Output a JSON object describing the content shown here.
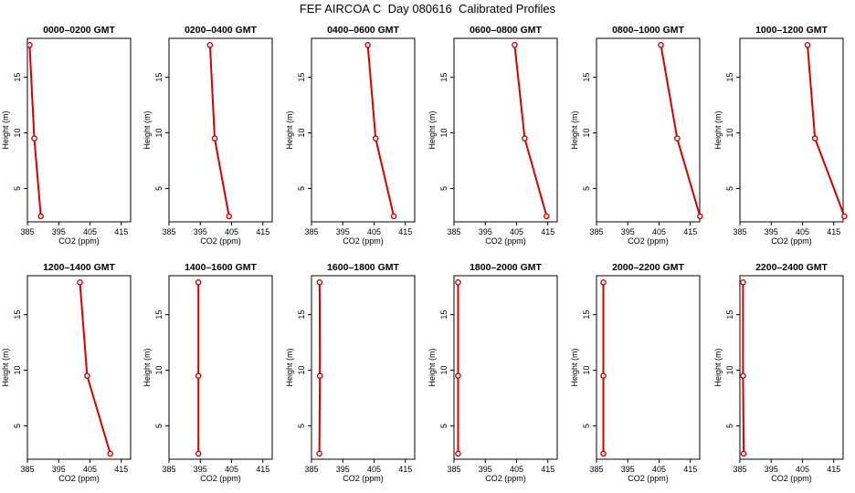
{
  "page": {
    "title": "FEF AIRCOA C  Day 080616  Calibrated Profiles"
  },
  "colors": {
    "profile": "#d40000",
    "axis": "#000000"
  },
  "chart_data": [
    {
      "type": "line",
      "title": "0000–0200 GMT",
      "xlabel": "CO2 (ppm)",
      "ylabel": "Height (m)",
      "xlim": [
        385,
        418
      ],
      "ylim": [
        2,
        18.5
      ],
      "x_ticks": [
        "385",
        "395",
        "405",
        "415"
      ],
      "y_ticks": [
        "5",
        "10",
        "15"
      ],
      "series": [
        {
          "x": [
            385.7,
            387.2,
            389.3
          ],
          "y": [
            17.9,
            9.5,
            2.5
          ]
        }
      ]
    },
    {
      "type": "line",
      "title": "0200–0400 GMT",
      "xlabel": "CO2 (ppm)",
      "ylabel": "Height (m)",
      "xlim": [
        385,
        418
      ],
      "ylim": [
        2,
        18.5
      ],
      "x_ticks": [
        "385",
        "395",
        "405",
        "415"
      ],
      "y_ticks": [
        "5",
        "10",
        "15"
      ],
      "series": [
        {
          "x": [
            398.1,
            399.6,
            404.2
          ],
          "y": [
            17.9,
            9.5,
            2.5
          ]
        }
      ]
    },
    {
      "type": "line",
      "title": "0400–0600 GMT",
      "xlabel": "CO2 (ppm)",
      "ylabel": "Height (m)",
      "xlim": [
        385,
        418
      ],
      "ylim": [
        2,
        18.5
      ],
      "x_ticks": [
        "385",
        "395",
        "405",
        "415"
      ],
      "y_ticks": [
        "5",
        "10",
        "15"
      ],
      "series": [
        {
          "x": [
            403.0,
            405.5,
            411.3
          ],
          "y": [
            17.9,
            9.5,
            2.5
          ]
        }
      ]
    },
    {
      "type": "line",
      "title": "0600–0800 GMT",
      "xlabel": "CO2 (ppm)",
      "ylabel": "Height (m)",
      "xlim": [
        385,
        418
      ],
      "ylim": [
        2,
        18.5
      ],
      "x_ticks": [
        "385",
        "395",
        "405",
        "415"
      ],
      "y_ticks": [
        "5",
        "10",
        "15"
      ],
      "series": [
        {
          "x": [
            404.4,
            407.6,
            414.6
          ],
          "y": [
            17.9,
            9.5,
            2.5
          ]
        }
      ]
    },
    {
      "type": "line",
      "title": "0800–1000 GMT",
      "xlabel": "CO2 (ppm)",
      "ylabel": "Height (m)",
      "xlim": [
        385,
        418
      ],
      "ylim": [
        2,
        18.5
      ],
      "x_ticks": [
        "385",
        "395",
        "405",
        "415"
      ],
      "y_ticks": [
        "5",
        "10",
        "15"
      ],
      "series": [
        {
          "x": [
            405.6,
            410.8,
            418.1
          ],
          "y": [
            17.9,
            9.5,
            2.5
          ]
        }
      ]
    },
    {
      "type": "line",
      "title": "1000–1200 GMT",
      "xlabel": "CO2 (ppm)",
      "ylabel": "Height (m)",
      "xlim": [
        385,
        418
      ],
      "ylim": [
        2,
        18.5
      ],
      "x_ticks": [
        "385",
        "395",
        "405",
        "415"
      ],
      "y_ticks": [
        "5",
        "10",
        "15"
      ],
      "series": [
        {
          "x": [
            406.6,
            409.0,
            418.4
          ],
          "y": [
            17.9,
            9.5,
            2.5
          ]
        }
      ]
    },
    {
      "type": "line",
      "title": "1200–1400 GMT",
      "xlabel": "CO2 (ppm)",
      "ylabel": "Height (m)",
      "xlim": [
        385,
        418
      ],
      "ylim": [
        2,
        18.5
      ],
      "x_ticks": [
        "385",
        "395",
        "405",
        "415"
      ],
      "y_ticks": [
        "5",
        "10",
        "15"
      ],
      "series": [
        {
          "x": [
            401.8,
            404.1,
            411.5
          ],
          "y": [
            17.9,
            9.5,
            2.5
          ]
        }
      ]
    },
    {
      "type": "line",
      "title": "1400–1600 GMT",
      "xlabel": "CO2 (ppm)",
      "ylabel": "Height (m)",
      "xlim": [
        385,
        418
      ],
      "ylim": [
        2,
        18.5
      ],
      "x_ticks": [
        "385",
        "395",
        "405",
        "415"
      ],
      "y_ticks": [
        "5",
        "10",
        "15"
      ],
      "series": [
        {
          "x": [
            394.4,
            394.4,
            394.4
          ],
          "y": [
            17.9,
            9.5,
            2.5
          ]
        }
      ]
    },
    {
      "type": "line",
      "title": "1600–1800 GMT",
      "xlabel": "CO2 (ppm)",
      "ylabel": "Height (m)",
      "xlim": [
        385,
        418
      ],
      "ylim": [
        2,
        18.5
      ],
      "x_ticks": [
        "385",
        "395",
        "405",
        "415"
      ],
      "y_ticks": [
        "5",
        "10",
        "15"
      ],
      "series": [
        {
          "x": [
            387.6,
            387.7,
            387.5
          ],
          "y": [
            17.9,
            9.5,
            2.5
          ]
        }
      ]
    },
    {
      "type": "line",
      "title": "1800–2000 GMT",
      "xlabel": "CO2 (ppm)",
      "ylabel": "Height (m)",
      "xlim": [
        385,
        418
      ],
      "ylim": [
        2,
        18.5
      ],
      "x_ticks": [
        "385",
        "395",
        "405",
        "415"
      ],
      "y_ticks": [
        "5",
        "10",
        "15"
      ],
      "series": [
        {
          "x": [
            386.3,
            386.3,
            386.3
          ],
          "y": [
            17.9,
            9.5,
            2.5
          ]
        }
      ]
    },
    {
      "type": "line",
      "title": "2000–2200 GMT",
      "xlabel": "CO2 (ppm)",
      "ylabel": "Height (m)",
      "xlim": [
        385,
        418
      ],
      "ylim": [
        2,
        18.5
      ],
      "x_ticks": [
        "385",
        "395",
        "405",
        "415"
      ],
      "y_ticks": [
        "5",
        "10",
        "15"
      ],
      "series": [
        {
          "x": [
            387.2,
            387.2,
            387.2
          ],
          "y": [
            17.9,
            9.5,
            2.5
          ]
        }
      ]
    },
    {
      "type": "line",
      "title": "2200–2400 GMT",
      "xlabel": "CO2 (ppm)",
      "ylabel": "Height (m)",
      "xlim": [
        385,
        418
      ],
      "ylim": [
        2,
        18.5
      ],
      "x_ticks": [
        "385",
        "395",
        "405",
        "415"
      ],
      "y_ticks": [
        "5",
        "10",
        "15"
      ],
      "series": [
        {
          "x": [
            386.0,
            386.0,
            386.2
          ],
          "y": [
            17.9,
            9.5,
            2.5
          ]
        }
      ]
    }
  ]
}
